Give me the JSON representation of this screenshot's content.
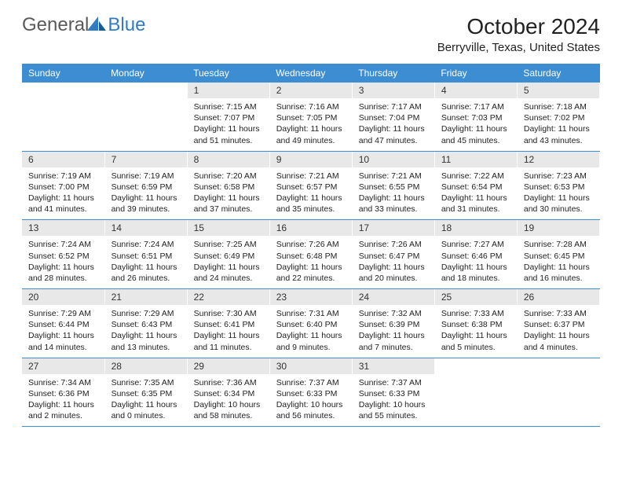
{
  "logo": {
    "text1": "General",
    "text2": "Blue"
  },
  "title": "October 2024",
  "location": "Berryville, Texas, United States",
  "colors": {
    "header_bg": "#3c8dd1",
    "header_text": "#ffffff",
    "daynum_bg": "#e8e8e8",
    "border": "#3c8dd1",
    "logo_gray": "#5a5a5a",
    "logo_blue": "#2f7cc4",
    "text": "#222222",
    "background": "#ffffff"
  },
  "layout": {
    "columns": 7,
    "rows": 5,
    "first_day_column": 2
  },
  "daynames": [
    "Sunday",
    "Monday",
    "Tuesday",
    "Wednesday",
    "Thursday",
    "Friday",
    "Saturday"
  ],
  "days": [
    {
      "n": "1",
      "sr": "Sunrise: 7:15 AM",
      "ss": "Sunset: 7:07 PM",
      "dl": "Daylight: 11 hours and 51 minutes."
    },
    {
      "n": "2",
      "sr": "Sunrise: 7:16 AM",
      "ss": "Sunset: 7:05 PM",
      "dl": "Daylight: 11 hours and 49 minutes."
    },
    {
      "n": "3",
      "sr": "Sunrise: 7:17 AM",
      "ss": "Sunset: 7:04 PM",
      "dl": "Daylight: 11 hours and 47 minutes."
    },
    {
      "n": "4",
      "sr": "Sunrise: 7:17 AM",
      "ss": "Sunset: 7:03 PM",
      "dl": "Daylight: 11 hours and 45 minutes."
    },
    {
      "n": "5",
      "sr": "Sunrise: 7:18 AM",
      "ss": "Sunset: 7:02 PM",
      "dl": "Daylight: 11 hours and 43 minutes."
    },
    {
      "n": "6",
      "sr": "Sunrise: 7:19 AM",
      "ss": "Sunset: 7:00 PM",
      "dl": "Daylight: 11 hours and 41 minutes."
    },
    {
      "n": "7",
      "sr": "Sunrise: 7:19 AM",
      "ss": "Sunset: 6:59 PM",
      "dl": "Daylight: 11 hours and 39 minutes."
    },
    {
      "n": "8",
      "sr": "Sunrise: 7:20 AM",
      "ss": "Sunset: 6:58 PM",
      "dl": "Daylight: 11 hours and 37 minutes."
    },
    {
      "n": "9",
      "sr": "Sunrise: 7:21 AM",
      "ss": "Sunset: 6:57 PM",
      "dl": "Daylight: 11 hours and 35 minutes."
    },
    {
      "n": "10",
      "sr": "Sunrise: 7:21 AM",
      "ss": "Sunset: 6:55 PM",
      "dl": "Daylight: 11 hours and 33 minutes."
    },
    {
      "n": "11",
      "sr": "Sunrise: 7:22 AM",
      "ss": "Sunset: 6:54 PM",
      "dl": "Daylight: 11 hours and 31 minutes."
    },
    {
      "n": "12",
      "sr": "Sunrise: 7:23 AM",
      "ss": "Sunset: 6:53 PM",
      "dl": "Daylight: 11 hours and 30 minutes."
    },
    {
      "n": "13",
      "sr": "Sunrise: 7:24 AM",
      "ss": "Sunset: 6:52 PM",
      "dl": "Daylight: 11 hours and 28 minutes."
    },
    {
      "n": "14",
      "sr": "Sunrise: 7:24 AM",
      "ss": "Sunset: 6:51 PM",
      "dl": "Daylight: 11 hours and 26 minutes."
    },
    {
      "n": "15",
      "sr": "Sunrise: 7:25 AM",
      "ss": "Sunset: 6:49 PM",
      "dl": "Daylight: 11 hours and 24 minutes."
    },
    {
      "n": "16",
      "sr": "Sunrise: 7:26 AM",
      "ss": "Sunset: 6:48 PM",
      "dl": "Daylight: 11 hours and 22 minutes."
    },
    {
      "n": "17",
      "sr": "Sunrise: 7:26 AM",
      "ss": "Sunset: 6:47 PM",
      "dl": "Daylight: 11 hours and 20 minutes."
    },
    {
      "n": "18",
      "sr": "Sunrise: 7:27 AM",
      "ss": "Sunset: 6:46 PM",
      "dl": "Daylight: 11 hours and 18 minutes."
    },
    {
      "n": "19",
      "sr": "Sunrise: 7:28 AM",
      "ss": "Sunset: 6:45 PM",
      "dl": "Daylight: 11 hours and 16 minutes."
    },
    {
      "n": "20",
      "sr": "Sunrise: 7:29 AM",
      "ss": "Sunset: 6:44 PM",
      "dl": "Daylight: 11 hours and 14 minutes."
    },
    {
      "n": "21",
      "sr": "Sunrise: 7:29 AM",
      "ss": "Sunset: 6:43 PM",
      "dl": "Daylight: 11 hours and 13 minutes."
    },
    {
      "n": "22",
      "sr": "Sunrise: 7:30 AM",
      "ss": "Sunset: 6:41 PM",
      "dl": "Daylight: 11 hours and 11 minutes."
    },
    {
      "n": "23",
      "sr": "Sunrise: 7:31 AM",
      "ss": "Sunset: 6:40 PM",
      "dl": "Daylight: 11 hours and 9 minutes."
    },
    {
      "n": "24",
      "sr": "Sunrise: 7:32 AM",
      "ss": "Sunset: 6:39 PM",
      "dl": "Daylight: 11 hours and 7 minutes."
    },
    {
      "n": "25",
      "sr": "Sunrise: 7:33 AM",
      "ss": "Sunset: 6:38 PM",
      "dl": "Daylight: 11 hours and 5 minutes."
    },
    {
      "n": "26",
      "sr": "Sunrise: 7:33 AM",
      "ss": "Sunset: 6:37 PM",
      "dl": "Daylight: 11 hours and 4 minutes."
    },
    {
      "n": "27",
      "sr": "Sunrise: 7:34 AM",
      "ss": "Sunset: 6:36 PM",
      "dl": "Daylight: 11 hours and 2 minutes."
    },
    {
      "n": "28",
      "sr": "Sunrise: 7:35 AM",
      "ss": "Sunset: 6:35 PM",
      "dl": "Daylight: 11 hours and 0 minutes."
    },
    {
      "n": "29",
      "sr": "Sunrise: 7:36 AM",
      "ss": "Sunset: 6:34 PM",
      "dl": "Daylight: 10 hours and 58 minutes."
    },
    {
      "n": "30",
      "sr": "Sunrise: 7:37 AM",
      "ss": "Sunset: 6:33 PM",
      "dl": "Daylight: 10 hours and 56 minutes."
    },
    {
      "n": "31",
      "sr": "Sunrise: 7:37 AM",
      "ss": "Sunset: 6:33 PM",
      "dl": "Daylight: 10 hours and 55 minutes."
    }
  ]
}
